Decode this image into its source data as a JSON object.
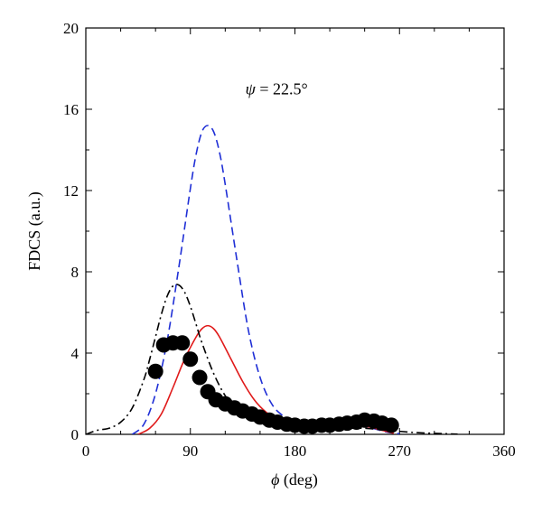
{
  "chart_data": {
    "type": "line",
    "title": "",
    "annotation": {
      "symbol": "ψ",
      "text": " = 22.5°",
      "x": 135,
      "y": 17
    },
    "xlabel": {
      "symbol": "ϕ",
      "text": " (deg)"
    },
    "ylabel": "FDCS (a.u.)",
    "xlim": [
      0,
      360
    ],
    "ylim": [
      0,
      20
    ],
    "xticks": [
      0,
      90,
      180,
      270,
      360
    ],
    "yticks": [
      0,
      4,
      8,
      12,
      16,
      20
    ],
    "grid": false,
    "legend": "none",
    "colors": {
      "blue": "#1f2fd6",
      "red": "#e01a1a",
      "black": "#000000"
    },
    "series": [
      {
        "style": "dashed",
        "color": "#1f2fd6",
        "x": [
          40,
          50,
          60,
          70,
          80,
          90,
          95,
          100,
          105,
          110,
          115,
          120,
          130,
          140,
          150,
          160,
          170,
          180,
          190,
          200,
          210,
          220,
          230,
          240,
          250,
          260,
          270
        ],
        "y": [
          0,
          0.5,
          2.0,
          4.6,
          8.2,
          12.1,
          13.8,
          14.9,
          15.2,
          14.9,
          13.9,
          12.3,
          8.6,
          5.1,
          2.8,
          1.5,
          0.9,
          0.6,
          0.45,
          0.45,
          0.5,
          0.55,
          0.5,
          0.4,
          0.25,
          0.1,
          0.03
        ]
      },
      {
        "style": "solid",
        "color": "#e01a1a",
        "x": [
          45,
          55,
          65,
          75,
          85,
          95,
          100,
          105,
          110,
          115,
          125,
          135,
          145,
          155,
          165,
          175,
          185,
          195,
          205,
          215,
          225,
          235,
          245,
          255,
          265
        ],
        "y": [
          0,
          0.3,
          1.0,
          2.3,
          3.7,
          4.8,
          5.2,
          5.35,
          5.2,
          4.8,
          3.7,
          2.6,
          1.7,
          1.1,
          0.75,
          0.5,
          0.4,
          0.38,
          0.4,
          0.45,
          0.5,
          0.45,
          0.35,
          0.2,
          0.05
        ]
      },
      {
        "style": "dashdot",
        "color": "#000000",
        "x": [
          0,
          10,
          20,
          30,
          40,
          50,
          55,
          60,
          65,
          70,
          75,
          80,
          85,
          90,
          95,
          100,
          110,
          120,
          130,
          140,
          150,
          160,
          170,
          180,
          190,
          200,
          210,
          220,
          230,
          240,
          250,
          260,
          270,
          280,
          290,
          300,
          310,
          320
        ],
        "y": [
          0,
          0.2,
          0.3,
          0.6,
          1.3,
          2.7,
          3.7,
          4.8,
          5.9,
          6.8,
          7.3,
          7.35,
          7.0,
          6.3,
          5.4,
          4.5,
          3.0,
          1.9,
          1.2,
          0.8,
          0.55,
          0.4,
          0.3,
          0.25,
          0.2,
          0.18,
          0.2,
          0.25,
          0.3,
          0.3,
          0.25,
          0.2,
          0.15,
          0.1,
          0.07,
          0.05,
          0.03,
          0.01
        ]
      },
      {
        "style": "markers",
        "marker": "circle",
        "color": "#000000",
        "x": [
          60,
          67,
          75,
          83,
          90,
          98,
          105,
          112,
          120,
          128,
          135,
          143,
          150,
          158,
          165,
          173,
          180,
          188,
          195,
          203,
          210,
          218,
          225,
          233,
          240,
          248,
          255,
          263
        ],
        "y": [
          3.1,
          4.4,
          4.5,
          4.5,
          3.7,
          2.8,
          2.1,
          1.7,
          1.5,
          1.3,
          1.15,
          1.0,
          0.85,
          0.7,
          0.6,
          0.5,
          0.45,
          0.4,
          0.4,
          0.45,
          0.45,
          0.5,
          0.55,
          0.6,
          0.7,
          0.65,
          0.55,
          0.45
        ]
      }
    ]
  }
}
